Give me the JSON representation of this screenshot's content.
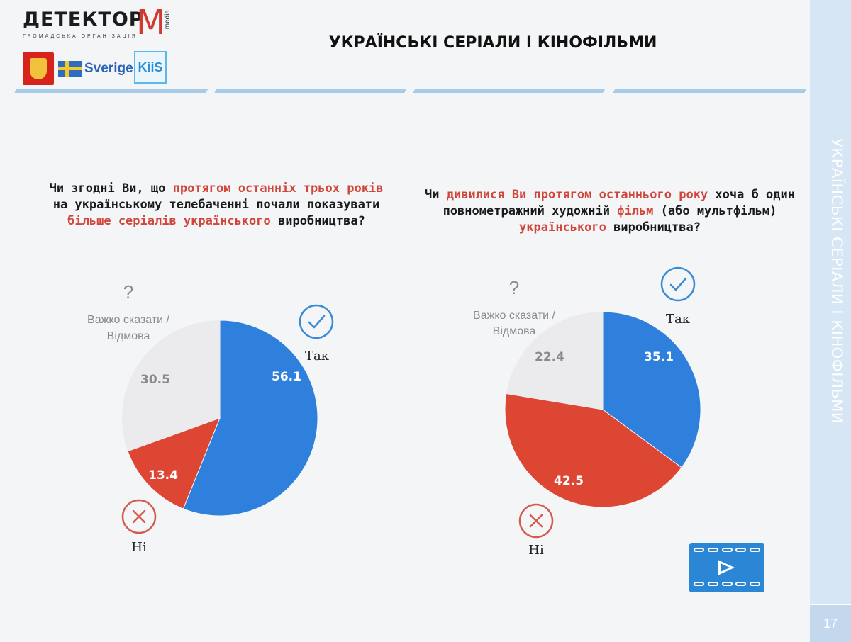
{
  "header": {
    "logo_text": "ДЕТЕКТОР",
    "logo_m": "M",
    "logo_media": "media",
    "logo_sub": "ГРОМАДСЬКА ОРГАНІЗАЦІЯ",
    "partner_sverige": "Sverige",
    "partner_kiis": "KiiS",
    "title": "УКРАЇНСЬКІ СЕРІАЛИ І КІНОФІЛЬМИ"
  },
  "side": {
    "vertical_title": "УКРАЇНСЬКІ СЕРІАЛИ І КІНОФІЛЬМИ",
    "page_number": "17"
  },
  "questions": {
    "q1": {
      "p1": "Чи згодні Ви, що ",
      "h1": "протягом останніх трьох років",
      "p2": " на українському телебаченні почали показувати ",
      "h2": "більше серіалів українського",
      "p3": " виробництва?"
    },
    "q2": {
      "p1": "Чи ",
      "h1": "дивилися Ви протягом останнього року",
      "p2": " хоча б один повнометражний художній ",
      "h2": "фільм",
      "p3": " (або мультфільм) ",
      "h3": "українського",
      "p4": " виробництва?"
    }
  },
  "icons": {
    "yes_icon": "check-circle-icon",
    "no_icon": "x-circle-icon",
    "dk_icon": "question-mark-icon",
    "video_icon": "video-play-icon",
    "question_mark": "?"
  },
  "colors": {
    "yes": "#2f80dc",
    "no": "#dd4632",
    "dk": "#ebebee",
    "highlight": "#d0463a",
    "icon_blue": "#3a8ad6",
    "icon_red": "#d35a4c"
  },
  "chart_data": [
    {
      "type": "pie",
      "title": "",
      "slices": [
        {
          "key": "yes",
          "label": "Так",
          "value": 56.1,
          "value_label": "56.1"
        },
        {
          "key": "no",
          "label": "Ні",
          "value": 13.4,
          "value_label": "13.4"
        },
        {
          "key": "dk",
          "label": "Важко сказати / Відмова",
          "label_lines": [
            "Важко сказати /",
            "Відмова"
          ],
          "value": 30.5,
          "value_label": "30.5"
        }
      ]
    },
    {
      "type": "pie",
      "title": "",
      "slices": [
        {
          "key": "yes",
          "label": "Так",
          "value": 35.1,
          "value_label": "35.1"
        },
        {
          "key": "no",
          "label": "Ні",
          "value": 42.5,
          "value_label": "42.5"
        },
        {
          "key": "dk",
          "label": "Важко сказати / Відмова",
          "label_lines": [
            "Важко сказати /",
            "Відмова"
          ],
          "value": 22.4,
          "value_label": "22.4"
        }
      ]
    }
  ]
}
